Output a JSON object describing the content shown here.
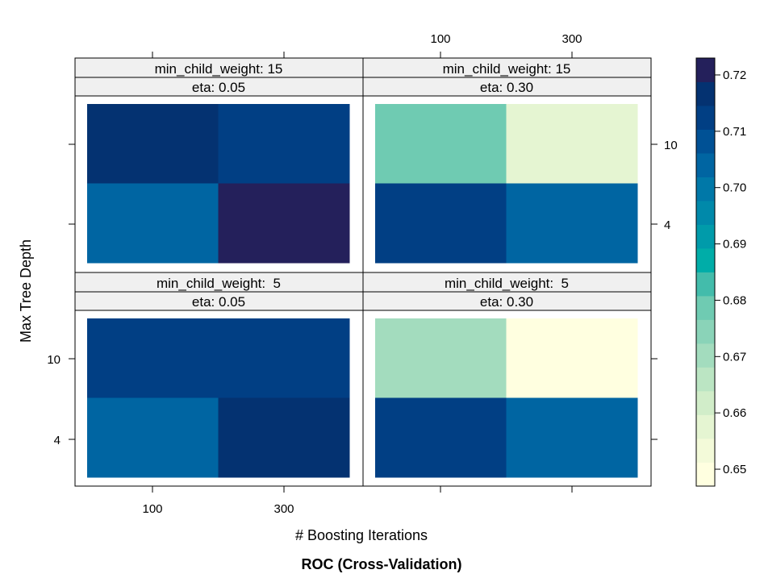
{
  "chart_data": {
    "type": "heatmap",
    "title": "ROC (Cross-Validation)",
    "xlabel": "# Boosting Iterations",
    "ylabel": "Max Tree Depth",
    "x_categories": [
      100,
      300
    ],
    "y_categories": [
      4,
      10
    ],
    "x_tick_labels": [
      "100",
      "300"
    ],
    "y_tick_labels": [
      "4",
      "10"
    ],
    "panels": [
      {
        "strip_weight": "min_child_weight: 15",
        "strip_eta": "eta: 0.05",
        "cells": [
          {
            "iter": 100,
            "depth": 10,
            "value": 0.716
          },
          {
            "iter": 300,
            "depth": 10,
            "value": 0.711
          },
          {
            "iter": 100,
            "depth": 4,
            "value": 0.706
          },
          {
            "iter": 300,
            "depth": 4,
            "value": 0.721
          }
        ]
      },
      {
        "strip_weight": "min_child_weight: 15",
        "strip_eta": "eta: 0.30",
        "cells": [
          {
            "iter": 100,
            "depth": 10,
            "value": 0.679
          },
          {
            "iter": 300,
            "depth": 10,
            "value": 0.659
          },
          {
            "iter": 100,
            "depth": 4,
            "value": 0.711
          },
          {
            "iter": 300,
            "depth": 4,
            "value": 0.703
          }
        ]
      },
      {
        "strip_weight": "min_child_weight:  5",
        "strip_eta": "eta: 0.05",
        "cells": [
          {
            "iter": 100,
            "depth": 10,
            "value": 0.713
          },
          {
            "iter": 300,
            "depth": 10,
            "value": 0.713
          },
          {
            "iter": 100,
            "depth": 4,
            "value": 0.706
          },
          {
            "iter": 300,
            "depth": 4,
            "value": 0.716
          }
        ]
      },
      {
        "strip_weight": "min_child_weight:  5",
        "strip_eta": "eta: 0.30",
        "cells": [
          {
            "iter": 100,
            "depth": 10,
            "value": 0.669
          },
          {
            "iter": 300,
            "depth": 10,
            "value": 0.651
          },
          {
            "iter": 100,
            "depth": 4,
            "value": 0.711
          },
          {
            "iter": 300,
            "depth": 4,
            "value": 0.703
          }
        ]
      }
    ],
    "colorbar": {
      "range": [
        0.647,
        0.723
      ],
      "tick_values": [
        0.65,
        0.66,
        0.67,
        0.68,
        0.69,
        0.7,
        0.71,
        0.72
      ],
      "tick_labels": [
        "0.65",
        "0.66",
        "0.67",
        "0.68",
        "0.69",
        "0.70",
        "0.71",
        "0.72"
      ],
      "colors": [
        "#FFFFE0",
        "#F3FAD9",
        "#E5F5D2",
        "#D1EDC9",
        "#BBE5C3",
        "#A3DCBE",
        "#8AD3B8",
        "#6FCBB2",
        "#43BCAB",
        "#00ADA8",
        "#009BAA",
        "#0089AA",
        "#0078A8",
        "#0065A2",
        "#005195",
        "#013F84",
        "#043271",
        "#24205B"
      ]
    }
  }
}
